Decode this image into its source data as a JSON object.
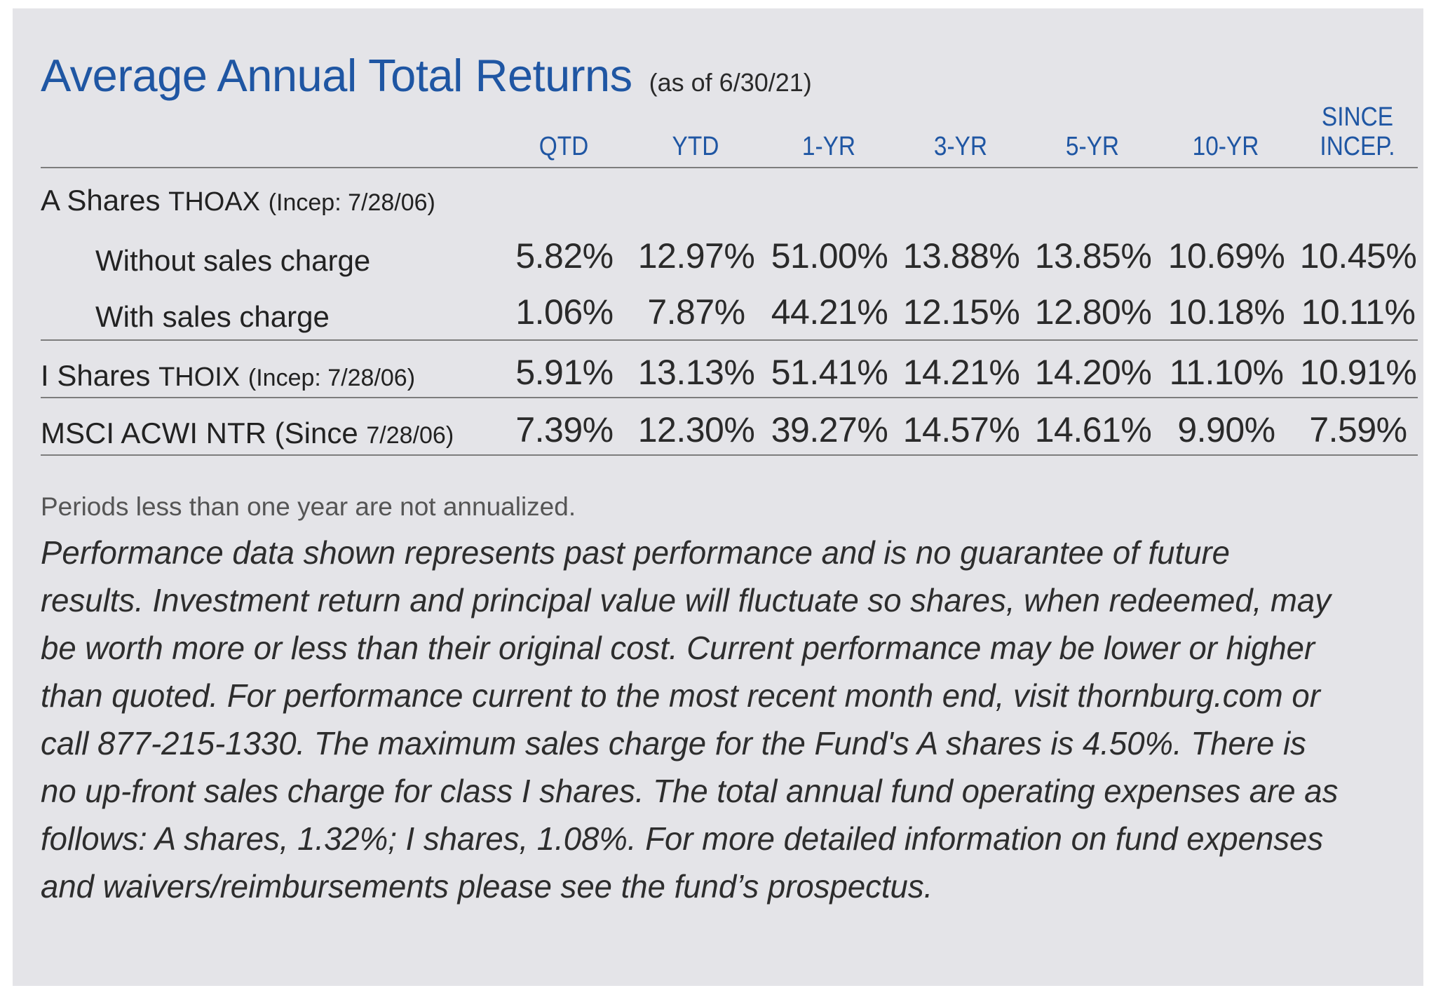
{
  "title": "Average Annual Total Returns",
  "as_of": "(as of 6/30/21)",
  "columns": [
    "QTD",
    "YTD",
    "1-YR",
    "3-YR",
    "5-YR",
    "10-YR",
    "SINCE",
    "INCEP."
  ],
  "rows": [
    {
      "label_main": "A Shares",
      "label_ticker": "THOAX",
      "label_note": "(Incep: 7/28/06)"
    },
    {
      "label_main": "Without sales charge",
      "values": [
        "5.82%",
        "12.97%",
        "51.00%",
        "13.88%",
        "13.85%",
        "10.69%",
        "10.45%"
      ]
    },
    {
      "label_main": "With sales charge",
      "values": [
        "1.06%",
        "7.87%",
        "44.21%",
        "12.15%",
        "12.80%",
        "10.18%",
        "10.11%"
      ]
    },
    {
      "label_main": "I Shares",
      "label_ticker": "THOIX",
      "label_note": "(Incep: 7/28/06)",
      "values": [
        "5.91%",
        "13.13%",
        "51.41%",
        "14.21%",
        "14.20%",
        "11.10%",
        "10.91%"
      ]
    },
    {
      "label_main": "MSCI ACWI NTR (Since",
      "label_note": "7/28/06)",
      "values": [
        "7.39%",
        "12.30%",
        "39.27%",
        "14.57%",
        "14.61%",
        "9.90%",
        "7.59%"
      ]
    }
  ],
  "note": "Periods less than one year are not annualized.",
  "disclaimer_lines": [
    "Performance data shown represents past performance and is no guarantee of future",
    "results. Investment return and principal value will fluctuate so shares, when redeemed, may",
    "be worth more or less than their original cost. Current performance may be lower or higher",
    "than quoted. For performance current to the most recent month end, visit thornburg.com or",
    "call 877-215-1330. The maximum sales charge for the Fund's A shares is 4.50%. There is",
    "no up-front sales charge for class I shares. The total annual fund operating expenses are as",
    "follows: A shares, 1.32%; I shares, 1.08%. For more detailed information on fund expenses",
    "and waivers/reimbursements please see the fund’s prospectus."
  ]
}
